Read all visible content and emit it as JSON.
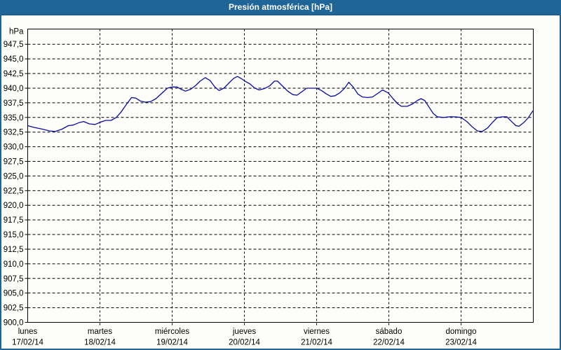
{
  "window": {
    "title": "Presión atmosférica [hPa]"
  },
  "colors": {
    "chrome_blue": "#1f6597",
    "chrome_blue_dark": "#17527c",
    "background": "#fdfefa",
    "axis_black": "#000000",
    "grid_black": "#000000",
    "line_blue": "#0a0aa0",
    "title_text": "#ffffff",
    "label_text": "#000000"
  },
  "chart_data": {
    "type": "line",
    "title": "Presión atmosférica [hPa]",
    "legend": "none",
    "grid": "dashed",
    "y_axis": {
      "unit": "hPa",
      "min": 900.0,
      "plot_top": 950.1,
      "tick_step": 2.5,
      "tick_values": [
        947.5,
        945.0,
        942.5,
        940.0,
        937.5,
        935.0,
        932.5,
        930.0,
        927.5,
        925.0,
        922.5,
        920.0,
        917.5,
        915.0,
        912.5,
        910.0,
        907.5,
        905.0,
        902.5,
        900.0
      ],
      "tick_labels": [
        "947,5",
        "945,0",
        "942,5",
        "940,0",
        "937,5",
        "935,0",
        "932,5",
        "930,0",
        "927,5",
        "925,0",
        "922,5",
        "920,0",
        "917,5",
        "915,0",
        "912,5",
        "910,0",
        "907,5",
        "905,0",
        "902,5",
        "900,0"
      ]
    },
    "x_axis": {
      "total_hours": 168,
      "hours_per_day": 24,
      "days": [
        {
          "name": "lunes",
          "date": "17/02/14"
        },
        {
          "name": "martes",
          "date": "18/02/14"
        },
        {
          "name": "miércoles",
          "date": "19/02/14"
        },
        {
          "name": "jueves",
          "date": "20/02/14"
        },
        {
          "name": "viernes",
          "date": "21/02/14"
        },
        {
          "name": "sábado",
          "date": "22/02/14"
        },
        {
          "name": "domingo",
          "date": "23/02/14"
        }
      ]
    },
    "series": [
      {
        "name": "Presión atmosférica",
        "color": "#0a0aa0",
        "points": [
          [
            0,
            933.6
          ],
          [
            2.1,
            933.3
          ],
          [
            4.9,
            933.0
          ],
          [
            7.2,
            932.7
          ],
          [
            9.1,
            932.6
          ],
          [
            11.4,
            933.0
          ],
          [
            13.5,
            933.6
          ],
          [
            15.1,
            933.7
          ],
          [
            17,
            934.1
          ],
          [
            18.6,
            934.3
          ],
          [
            20.5,
            933.9
          ],
          [
            22.4,
            933.8
          ],
          [
            24.2,
            934.2
          ],
          [
            25.9,
            934.5
          ],
          [
            27.7,
            934.5
          ],
          [
            29.4,
            935.0
          ],
          [
            31,
            935.9
          ],
          [
            32.9,
            937.3
          ],
          [
            34.5,
            938.4
          ],
          [
            35.9,
            938.3
          ],
          [
            37.5,
            937.8
          ],
          [
            39.1,
            937.6
          ],
          [
            40.8,
            937.7
          ],
          [
            42.6,
            938.2
          ],
          [
            44.5,
            939.1
          ],
          [
            46.4,
            940.0
          ],
          [
            48,
            940.2
          ],
          [
            49.6,
            940.2
          ],
          [
            51,
            939.8
          ],
          [
            52.4,
            939.5
          ],
          [
            54.1,
            939.8
          ],
          [
            55.7,
            940.4
          ],
          [
            57.3,
            941.2
          ],
          [
            59,
            941.8
          ],
          [
            60.6,
            941.3
          ],
          [
            62.2,
            940.2
          ],
          [
            63.6,
            939.6
          ],
          [
            65.2,
            940.0
          ],
          [
            66.9,
            940.9
          ],
          [
            68.5,
            941.7
          ],
          [
            69.7,
            942.0
          ],
          [
            71.1,
            941.6
          ],
          [
            72.2,
            941.2
          ],
          [
            73.9,
            940.7
          ],
          [
            75.5,
            940.0
          ],
          [
            76.9,
            939.7
          ],
          [
            78.5,
            939.9
          ],
          [
            80.4,
            940.4
          ],
          [
            82,
            941.2
          ],
          [
            83,
            941.2
          ],
          [
            84.6,
            940.4
          ],
          [
            86.4,
            939.5
          ],
          [
            88.1,
            938.9
          ],
          [
            89.5,
            938.8
          ],
          [
            91.1,
            939.4
          ],
          [
            92.7,
            940.0
          ],
          [
            94.6,
            940.0
          ],
          [
            96,
            940.0
          ],
          [
            97.6,
            939.6
          ],
          [
            99.3,
            939.0
          ],
          [
            100.7,
            938.6
          ],
          [
            102.1,
            938.7
          ],
          [
            103.7,
            939.2
          ],
          [
            105.3,
            940.0
          ],
          [
            106.7,
            941.0
          ],
          [
            108.3,
            940.1
          ],
          [
            109.7,
            939.0
          ],
          [
            111.2,
            938.5
          ],
          [
            113,
            938.4
          ],
          [
            114.6,
            938.5
          ],
          [
            116.3,
            939.1
          ],
          [
            117.9,
            939.7
          ],
          [
            119.8,
            939.2
          ],
          [
            121.4,
            938.2
          ],
          [
            123,
            937.3
          ],
          [
            124.2,
            936.9
          ],
          [
            126.1,
            936.9
          ],
          [
            127.9,
            937.3
          ],
          [
            129.5,
            937.9
          ],
          [
            130.7,
            938.2
          ],
          [
            131.9,
            937.9
          ],
          [
            133.3,
            936.8
          ],
          [
            134.7,
            935.7
          ],
          [
            136.1,
            935.1
          ],
          [
            138.2,
            935.0
          ],
          [
            140,
            935.1
          ],
          [
            141.9,
            935.1
          ],
          [
            144,
            935.0
          ],
          [
            145.9,
            934.3
          ],
          [
            147.7,
            933.4
          ],
          [
            149.4,
            932.7
          ],
          [
            151,
            932.6
          ],
          [
            152.8,
            933.2
          ],
          [
            154.5,
            934.2
          ],
          [
            156.1,
            935.0
          ],
          [
            157.8,
            935.1
          ],
          [
            159.2,
            935.1
          ],
          [
            160.6,
            934.4
          ],
          [
            162.2,
            933.6
          ],
          [
            163.3,
            933.5
          ],
          [
            165,
            934.2
          ],
          [
            166.4,
            935.0
          ],
          [
            167.3,
            935.7
          ],
          [
            168,
            936.2
          ]
        ]
      }
    ]
  }
}
